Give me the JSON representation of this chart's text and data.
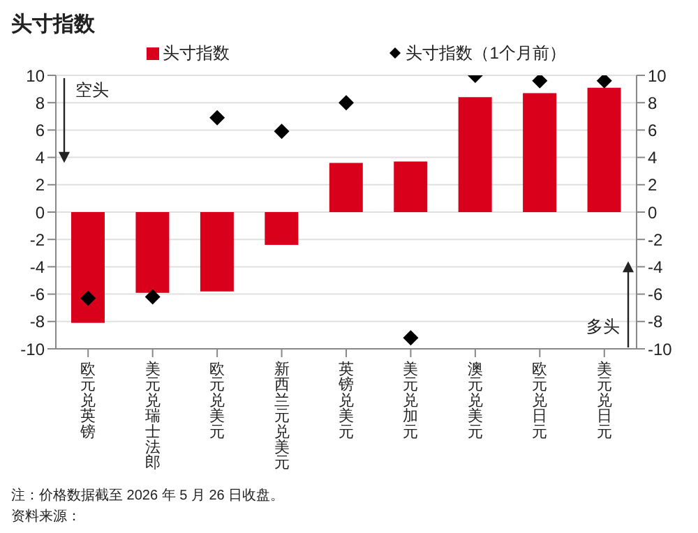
{
  "chart_data": {
    "type": "bar",
    "title": "头寸指数",
    "categories": [
      "欧元兑英镑",
      "美元兑瑞士法郎",
      "欧元兑美元",
      "新西兰元兑美元",
      "英镑兑美元",
      "美元兑加元",
      "澳元兑美元",
      "欧元兑日元",
      "美元兑日元"
    ],
    "series": [
      {
        "name": "头寸指数",
        "color": "#d9001b",
        "values": [
          -8.1,
          -5.9,
          -5.8,
          -2.4,
          3.6,
          3.7,
          8.4,
          8.7,
          9.1
        ]
      },
      {
        "name": "头寸指数（1个月前）",
        "type": "scatter",
        "color": "#000000",
        "values": [
          -6.3,
          -6.2,
          6.9,
          5.9,
          8.0,
          -9.2,
          10.0,
          9.6,
          9.6
        ]
      }
    ],
    "ylim": [
      -10,
      10
    ],
    "yticks": [
      -10,
      -8,
      -6,
      -4,
      -2,
      0,
      2,
      4,
      6,
      8,
      10
    ],
    "y2lim": [
      -10,
      10
    ],
    "y2ticks": [
      -10,
      -8,
      -6,
      -4,
      -2,
      0,
      2,
      4,
      6,
      8,
      10
    ],
    "grid": "y",
    "legend": "top",
    "marker": "diamond",
    "annotations": [
      "空头",
      "多头",
      "注：价格数据截至 2026 年 5 月 26 日收盘。",
      "资料来源："
    ]
  }
}
